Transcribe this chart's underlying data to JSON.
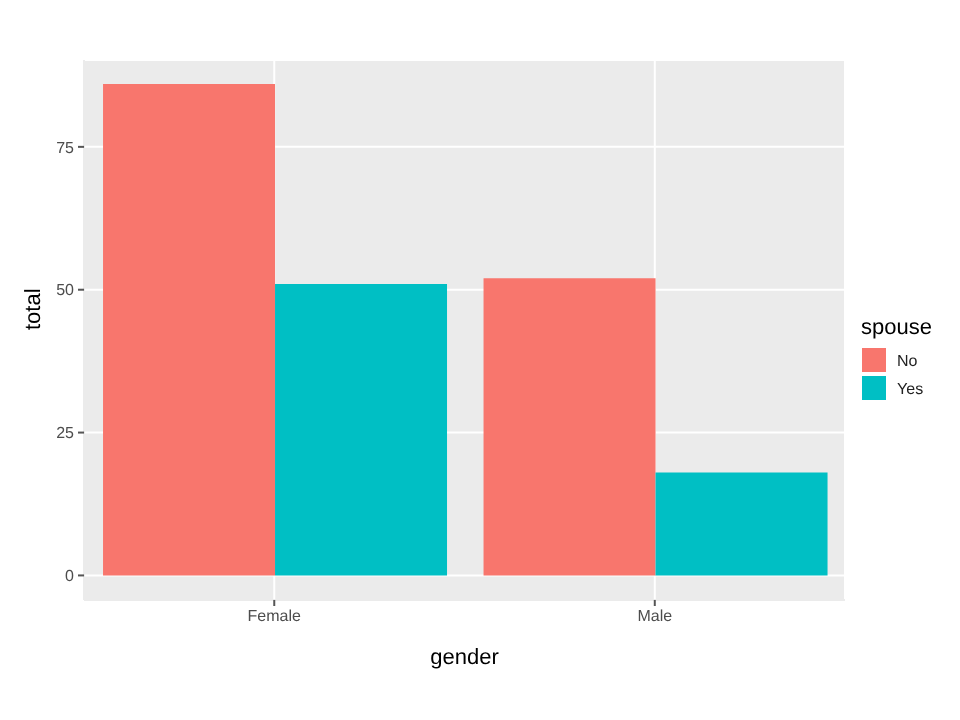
{
  "chart_data": {
    "type": "bar",
    "xlabel": "gender",
    "ylabel": "total",
    "legend_title": "spouse",
    "categories": [
      "Female",
      "Male"
    ],
    "series": [
      {
        "name": "No",
        "color": "#f8766d",
        "values": [
          86,
          52
        ]
      },
      {
        "name": "Yes",
        "color": "#00bfc4",
        "values": [
          51,
          18
        ]
      }
    ],
    "ylim": [
      -4.3,
      90.2
    ],
    "yticks": [
      0,
      25,
      50,
      75
    ],
    "grid": true,
    "legend": "right"
  }
}
